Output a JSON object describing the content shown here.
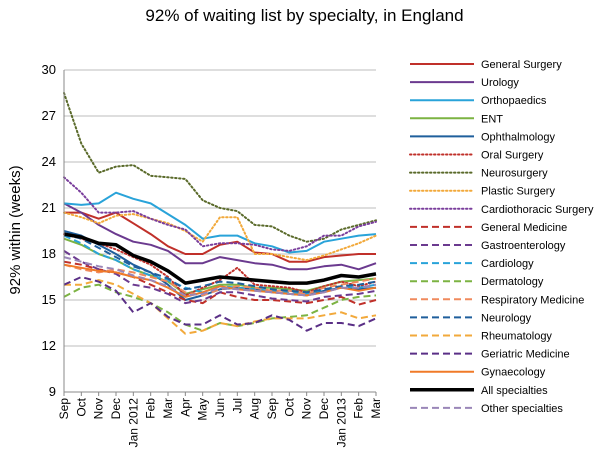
{
  "chart_data": {
    "type": "line",
    "title": "92% of waiting list by specialty, in England",
    "ylabel": "92% within (weeks)",
    "xlabel": "",
    "ylim": [
      9,
      30
    ],
    "yticks": [
      9,
      12,
      15,
      18,
      21,
      24,
      27,
      30
    ],
    "x": [
      "Sep",
      "Oct",
      "Nov",
      "Dec",
      "Jan 2012",
      "Feb",
      "Mar",
      "Apr",
      "May",
      "Jun",
      "Jul",
      "Aug",
      "Sep",
      "Oct",
      "Nov",
      "Dec",
      "Jan 2013",
      "Feb",
      "Mar"
    ],
    "grid": "horizontal",
    "legend_position": "right",
    "series": [
      {
        "name": "General Surgery",
        "color": "#c0302a",
        "dash": "solid",
        "width": 2,
        "values": [
          20.7,
          20.7,
          20.3,
          20.7,
          20.0,
          19.3,
          18.5,
          18.0,
          18.0,
          18.6,
          18.8,
          18.1,
          18.0,
          17.5,
          17.5,
          17.8,
          17.9,
          18.0,
          18.0
        ]
      },
      {
        "name": "Urology",
        "color": "#6b3a8f",
        "dash": "solid",
        "width": 2,
        "values": [
          21.3,
          20.7,
          19.9,
          19.3,
          18.8,
          18.6,
          18.2,
          17.4,
          17.4,
          17.8,
          17.6,
          17.4,
          17.3,
          17.0,
          17.0,
          17.2,
          17.3,
          17.0,
          17.4
        ]
      },
      {
        "name": "Orthopaedics",
        "color": "#29a3d9",
        "dash": "solid",
        "width": 2,
        "values": [
          21.3,
          21.2,
          21.3,
          22.0,
          21.6,
          21.3,
          20.6,
          19.9,
          19.0,
          19.2,
          19.2,
          18.7,
          18.5,
          18.1,
          18.2,
          18.8,
          19.0,
          19.2,
          19.3
        ]
      },
      {
        "name": "ENT",
        "color": "#7cb342",
        "dash": "solid",
        "width": 2,
        "values": [
          19.0,
          18.6,
          18.0,
          17.6,
          17.0,
          16.6,
          16.2,
          15.4,
          15.7,
          16.0,
          16.0,
          15.8,
          15.8,
          15.7,
          15.6,
          15.9,
          16.2,
          16.3,
          16.4
        ]
      },
      {
        "name": "Ophthalmology",
        "color": "#1f5f9c",
        "dash": "solid",
        "width": 2,
        "values": [
          19.5,
          19.2,
          18.6,
          18.0,
          17.3,
          16.8,
          16.0,
          15.0,
          15.3,
          15.7,
          15.8,
          15.7,
          15.5,
          15.4,
          15.3,
          15.6,
          15.8,
          15.7,
          15.8
        ]
      },
      {
        "name": "Oral Surgery",
        "color": "#c0302a",
        "dash": "dot",
        "width": 2,
        "values": [
          19.3,
          19.0,
          18.7,
          18.3,
          17.8,
          17.3,
          16.5,
          15.3,
          15.8,
          16.3,
          17.1,
          16.0,
          15.9,
          15.8,
          15.5,
          15.9,
          16.2,
          15.9,
          16.2
        ]
      },
      {
        "name": "Neurosurgery",
        "color": "#5a6a2a",
        "dash": "dot",
        "width": 2,
        "values": [
          28.5,
          25.2,
          23.3,
          23.7,
          23.8,
          23.1,
          23.0,
          22.9,
          21.5,
          21.0,
          20.8,
          19.9,
          19.8,
          19.2,
          18.8,
          19.0,
          19.6,
          19.9,
          20.2
        ]
      },
      {
        "name": "Plastic Surgery",
        "color": "#f2a93b",
        "dash": "dot",
        "width": 2,
        "values": [
          20.7,
          20.4,
          20.0,
          20.5,
          20.6,
          20.3,
          20.0,
          19.5,
          18.8,
          20.4,
          20.4,
          18.0,
          18.0,
          17.8,
          17.6,
          17.9,
          18.3,
          18.7,
          19.2
        ]
      },
      {
        "name": "Cardiothoracic Surgery",
        "color": "#7a3e9c",
        "dash": "dot",
        "width": 2,
        "values": [
          23.0,
          22.0,
          20.7,
          20.7,
          20.8,
          20.3,
          19.9,
          19.6,
          18.5,
          18.7,
          18.7,
          18.6,
          18.3,
          18.2,
          18.5,
          19.2,
          19.2,
          19.8,
          20.1
        ]
      },
      {
        "name": "General Medicine",
        "color": "#c0302a",
        "dash": "dash",
        "width": 2,
        "values": [
          17.5,
          17.3,
          17.0,
          16.8,
          16.5,
          16.0,
          15.5,
          15.0,
          14.8,
          15.5,
          15.2,
          15.0,
          15.0,
          14.9,
          14.8,
          15.0,
          15.2,
          14.7,
          15.0
        ]
      },
      {
        "name": "Gastroenterology",
        "color": "#6b3a8f",
        "dash": "dash",
        "width": 2,
        "values": [
          18.2,
          17.5,
          17.0,
          16.7,
          16.0,
          15.8,
          15.4,
          14.8,
          15.0,
          15.5,
          15.5,
          15.3,
          15.1,
          15.0,
          14.9,
          15.2,
          15.3,
          15.4,
          15.6
        ]
      },
      {
        "name": "Cardiology",
        "color": "#29a3d9",
        "dash": "dash",
        "width": 2,
        "values": [
          19.2,
          18.7,
          18.0,
          17.6,
          17.0,
          16.6,
          16.3,
          15.8,
          15.5,
          15.9,
          15.8,
          15.7,
          15.6,
          15.5,
          15.4,
          15.7,
          15.9,
          15.8,
          16.0
        ]
      },
      {
        "name": "Dermatology",
        "color": "#7cb342",
        "dash": "dash",
        "width": 2,
        "values": [
          15.2,
          15.8,
          16.0,
          15.5,
          15.2,
          14.8,
          14.2,
          13.4,
          13.0,
          13.5,
          13.3,
          13.5,
          13.8,
          13.9,
          14.0,
          14.5,
          15.0,
          15.2,
          15.3
        ]
      },
      {
        "name": "Respiratory Medicine",
        "color": "#f08a5d",
        "dash": "dash",
        "width": 2,
        "values": [
          17.3,
          17.0,
          16.8,
          17.0,
          16.8,
          16.5,
          16.2,
          15.5,
          15.3,
          15.7,
          15.9,
          15.8,
          15.6,
          15.6,
          15.4,
          15.8,
          16.0,
          16.2,
          16.4
        ]
      },
      {
        "name": "Neurology",
        "color": "#1f5f9c",
        "dash": "dash",
        "width": 2,
        "values": [
          19.3,
          19.0,
          18.4,
          17.8,
          17.2,
          16.8,
          16.4,
          15.7,
          15.9,
          16.2,
          16.1,
          15.9,
          15.7,
          15.6,
          15.5,
          15.7,
          15.9,
          16.0,
          16.2
        ]
      },
      {
        "name": "Rheumatology",
        "color": "#f2a93b",
        "dash": "dash",
        "width": 2,
        "values": [
          16.0,
          16.0,
          16.3,
          16.0,
          15.4,
          14.8,
          13.8,
          12.8,
          13.0,
          13.5,
          13.3,
          13.6,
          13.8,
          13.8,
          13.8,
          14.0,
          14.2,
          13.8,
          14.0
        ]
      },
      {
        "name": "Geriatric Medicine",
        "color": "#5a2f86",
        "dash": "dash",
        "width": 2,
        "values": [
          16.0,
          16.5,
          16.2,
          15.6,
          14.2,
          14.8,
          13.9,
          13.4,
          13.4,
          14.0,
          13.4,
          13.5,
          14.0,
          13.7,
          13.0,
          13.5,
          13.5,
          13.3,
          13.8
        ]
      },
      {
        "name": "Gynaecology",
        "color": "#f07a28",
        "dash": "solid",
        "width": 2,
        "values": [
          17.3,
          17.1,
          16.9,
          16.8,
          16.5,
          16.3,
          15.8,
          15.2,
          15.5,
          15.9,
          15.7,
          15.6,
          15.5,
          15.4,
          15.3,
          15.5,
          15.8,
          15.6,
          15.8
        ]
      },
      {
        "name": "All specialties",
        "color": "#000000",
        "dash": "solid",
        "width": 3.5,
        "values": [
          19.3,
          19.1,
          18.7,
          18.6,
          17.9,
          17.5,
          16.9,
          16.1,
          16.3,
          16.5,
          16.4,
          16.3,
          16.2,
          16.1,
          16.1,
          16.3,
          16.6,
          16.5,
          16.7
        ]
      },
      {
        "name": "Other specialties",
        "color": "#9a86b8",
        "dash": "dash",
        "width": 2,
        "values": [
          17.8,
          17.5,
          17.2,
          17.0,
          16.6,
          16.3,
          15.9,
          15.3,
          15.4,
          15.8,
          15.7,
          15.6,
          15.5,
          15.4,
          15.3,
          15.5,
          15.8,
          15.8,
          16.0
        ]
      }
    ]
  }
}
